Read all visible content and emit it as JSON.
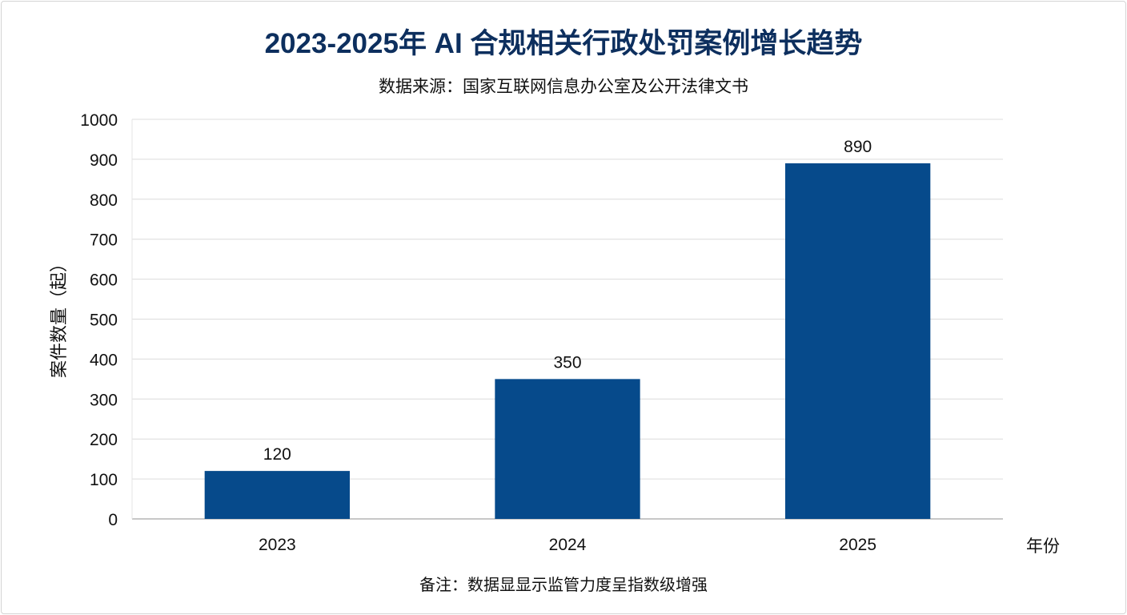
{
  "chart_data": {
    "type": "bar",
    "title": "2023-2025年 AI 合规相关行政处罚案例增长趋势",
    "subtitle": "数据来源：国家互联网信息办公室及公开法律文书",
    "categories": [
      "2023",
      "2024",
      "2025"
    ],
    "values": [
      120,
      350,
      890
    ],
    "data_labels": [
      "120",
      "350",
      "890"
    ],
    "xlabel": "年份",
    "ylabel": "案件数量（起）",
    "ylim": [
      0,
      1000
    ],
    "yticks": [
      "0",
      "100",
      "200",
      "300",
      "400",
      "500",
      "600",
      "700",
      "800",
      "900",
      "1000"
    ],
    "grid": true,
    "bar_color": "#064a8b",
    "title_color": "#0d2f5e",
    "note": "备注：数据显显示监管力度呈指数级增强"
  }
}
